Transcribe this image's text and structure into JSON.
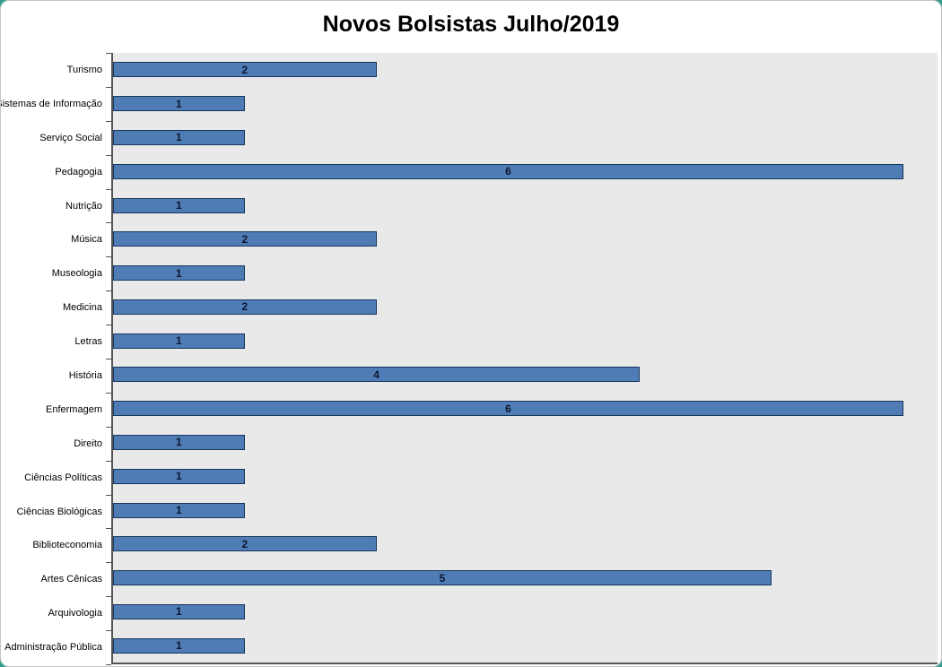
{
  "chart_data": {
    "type": "bar",
    "orientation": "horizontal",
    "title": "Novos Bolsistas Julho/2019",
    "xlabel": "",
    "ylabel": "",
    "categories": [
      "Turismo",
      "Sistemas de Informação",
      "Serviço Social",
      "Pedagogia",
      "Nutrição",
      "Música",
      "Museologia",
      "Medicina",
      "Letras",
      "História",
      "Enfermagem",
      "Direito",
      "Ciências Políticas",
      "Ciências Biológicas",
      "Biblioteconomia",
      "Artes Cênicas",
      "Arquivologia",
      "Administração Pública"
    ],
    "values": [
      2,
      1,
      1,
      6,
      1,
      2,
      1,
      2,
      1,
      4,
      6,
      1,
      1,
      1,
      2,
      5,
      1,
      1
    ],
    "xlim": [
      0,
      6.26
    ],
    "grid": false,
    "legend": false,
    "data_labels": "centered",
    "colors": {
      "bar_fill": "#4f7cb4",
      "bar_border": "#17375e",
      "plot_background": "#e9e9e9",
      "axis_line": "#555555",
      "label_text": "#000000",
      "value_text": "#0b1531",
      "corner_accent": "#2f9e8e"
    }
  }
}
